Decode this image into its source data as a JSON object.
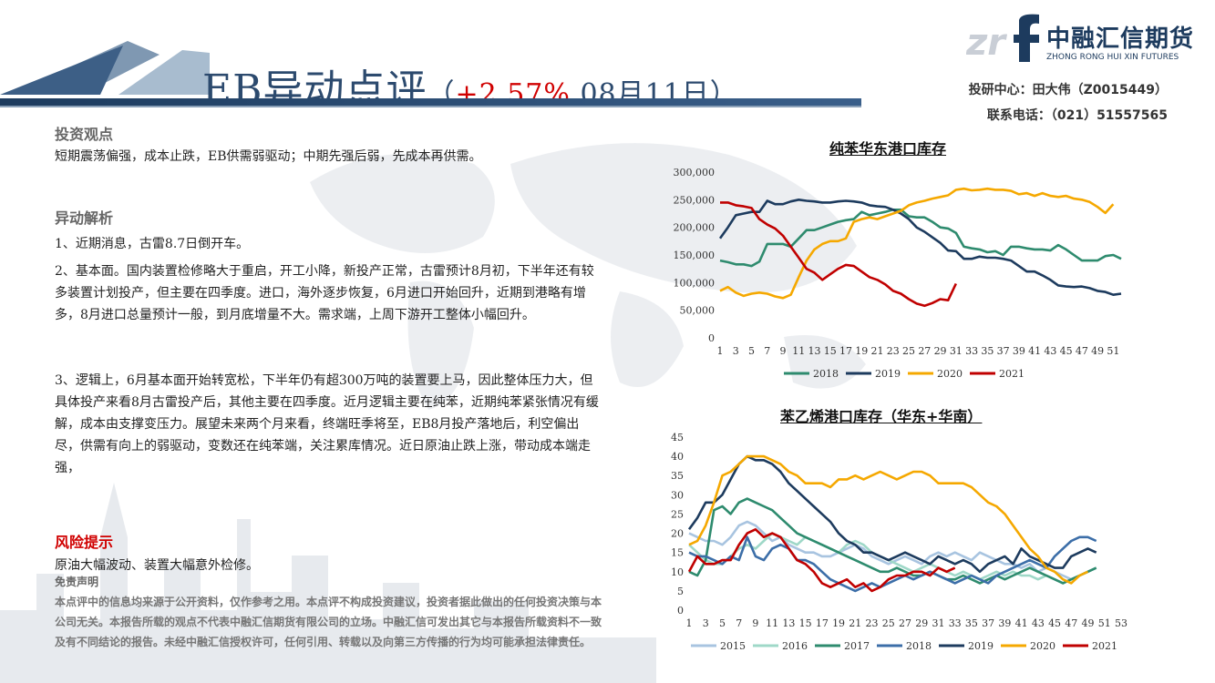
{
  "header": {
    "title_main": "EB异动点评",
    "title_paren_open": "（",
    "title_pct": "+2.57%",
    "title_date": " 08月11日",
    "title_paren_close": "）",
    "logo_cn": "中融汇信期货",
    "logo_en": "ZHONG RONG HUI XIN FUTURES",
    "contact_1": "投研中心：田大伟（Z0015449）",
    "contact_2": "联系电话：（021）51557565"
  },
  "view": {
    "title": "投资观点",
    "text": "短期震荡偏强，成本止跌，EB供需弱驱动；中期先强后弱，先成本再供需。"
  },
  "analysis": {
    "title": "异动解析",
    "p1": "1、近期消息，古雷8.7日倒开车。",
    "p2": "2、基本面。国内装置检修略大于重启，开工小降，新投产正常，古雷预计8月初，下半年还有较多装置计划投产，但主要在四季度。进口，海外逐步恢复，6月进口开始回升，近期到港略有增多，8月进口总量预计一般，到月底增量不大。需求端，上周下游开工整体小幅回升。",
    "p3": "3、逻辑上，6月基本面开始转宽松，下半年仍有超300万吨的装置要上马，因此整体压力大，但具体投产来看8月古雷投产后，其他主要在四季度。近月逻辑主要在纯苯，近期纯苯紧张情况有缓解，成本由支撑变压力。展望未来两个月来看，终端旺季将至，EB8月投产落地后，利空偏出尽，供需有向上的弱驱动，变数还在纯苯端，关注累库情况。近日原油止跌上涨，带动成本端走强，"
  },
  "risk": {
    "title": "风险提示",
    "text": "原油大幅波动、装置大幅意外检修。"
  },
  "disclaimer": {
    "title": "免责声明",
    "text": "本点评中的信息均来源于公开资料，仅作参考之用。本点评不构成投资建议，投资者据此做出的任何投资决策与本公司无关。本报告所载的观点不代表中融汇信期货有限公司的立场。中融汇信可发出其它与本报告所载资料不一致及有不同结论的报告。未经中融汇信授权许可，任何引用、转载以及向第三方传播的行为均可能承担法律责任。"
  },
  "chart_data": [
    {
      "type": "line",
      "title": "纯苯华东港口库存",
      "ylim": [
        0,
        300000
      ],
      "yticks": [
        "300,000",
        "250,000",
        "200,000",
        "150,000",
        "100,000",
        "50,000",
        "0"
      ],
      "x": [
        1,
        2,
        3,
        4,
        5,
        6,
        7,
        8,
        9,
        10,
        11,
        12,
        13,
        14,
        15,
        16,
        17,
        18,
        19,
        20,
        21,
        22,
        23,
        24,
        25,
        26,
        27,
        28,
        29,
        30,
        31,
        32,
        33,
        34,
        35,
        36,
        37,
        38,
        39,
        40,
        41,
        42,
        43,
        44,
        45,
        46,
        47,
        48,
        49,
        50,
        51,
        52
      ],
      "xticks": [
        "1",
        "3",
        "5",
        "7",
        "9",
        "11",
        "13",
        "15",
        "17",
        "19",
        "21",
        "23",
        "25",
        "27",
        "29",
        "31",
        "33",
        "35",
        "37",
        "39",
        "41",
        "43",
        "45",
        "47",
        "49",
        "51"
      ],
      "legend": "bottom",
      "series": [
        {
          "name": "2018",
          "color": "#2e8b6e",
          "values": [
            140000,
            137000,
            133000,
            133000,
            130000,
            138000,
            170000,
            170000,
            170000,
            165000,
            180000,
            195000,
            195000,
            200000,
            205000,
            210000,
            213000,
            215000,
            228000,
            222000,
            225000,
            228000,
            232000,
            232000,
            220000,
            218000,
            218000,
            210000,
            200000,
            198000,
            190000,
            165000,
            162000,
            160000,
            155000,
            157000,
            150000,
            165000,
            165000,
            162000,
            160000,
            160000,
            158000,
            168000,
            160000,
            150000,
            140000,
            140000,
            140000,
            148000,
            150000,
            143000
          ]
        },
        {
          "name": "2019",
          "color": "#1d3b5e",
          "values": [
            180000,
            200000,
            222000,
            225000,
            228000,
            228000,
            248000,
            242000,
            242000,
            247000,
            250000,
            248000,
            247000,
            245000,
            245000,
            247000,
            248000,
            247000,
            245000,
            240000,
            238000,
            237000,
            232000,
            225000,
            215000,
            200000,
            192000,
            182000,
            172000,
            158000,
            157000,
            143000,
            143000,
            147000,
            145000,
            145000,
            143000,
            140000,
            130000,
            120000,
            120000,
            113000,
            105000,
            95000,
            93000,
            92000,
            93000,
            90000,
            85000,
            83000,
            78000,
            80000
          ]
        },
        {
          "name": "2020",
          "color": "#f5a800",
          "values": [
            85000,
            92000,
            82000,
            76000,
            80000,
            82000,
            80000,
            75000,
            72000,
            78000,
            110000,
            140000,
            160000,
            170000,
            175000,
            175000,
            180000,
            210000,
            215000,
            218000,
            215000,
            220000,
            225000,
            230000,
            240000,
            245000,
            248000,
            252000,
            255000,
            258000,
            268000,
            270000,
            267000,
            268000,
            270000,
            268000,
            268000,
            266000,
            260000,
            262000,
            257000,
            262000,
            257000,
            255000,
            257000,
            252000,
            250000,
            246000,
            237000,
            226000,
            242000,
            null
          ]
        },
        {
          "name": "2021",
          "color": "#c00000",
          "values": [
            245000,
            245000,
            240000,
            238000,
            235000,
            215000,
            205000,
            198000,
            185000,
            165000,
            145000,
            125000,
            118000,
            105000,
            115000,
            125000,
            132000,
            130000,
            120000,
            110000,
            105000,
            97000,
            85000,
            80000,
            70000,
            62000,
            58000,
            63000,
            70000,
            68000,
            98000,
            null,
            null,
            null,
            null,
            null,
            null,
            null,
            null,
            null,
            null,
            null,
            null,
            null,
            null,
            null,
            null,
            null,
            null,
            null,
            null,
            null
          ]
        }
      ]
    },
    {
      "type": "line",
      "title": "苯乙烯港口库存（华东+华南）",
      "ylim": [
        0,
        45
      ],
      "yticks": [
        "45",
        "40",
        "35",
        "30",
        "25",
        "20",
        "15",
        "10",
        "5",
        "0"
      ],
      "x": [
        1,
        2,
        3,
        4,
        5,
        6,
        7,
        8,
        9,
        10,
        11,
        12,
        13,
        14,
        15,
        16,
        17,
        18,
        19,
        20,
        21,
        22,
        23,
        24,
        25,
        26,
        27,
        28,
        29,
        30,
        31,
        32,
        33,
        34,
        35,
        36,
        37,
        38,
        39,
        40,
        41,
        42,
        43,
        44,
        45,
        46,
        47,
        48,
        49,
        50,
        51,
        52,
        53
      ],
      "xticks": [
        "1",
        "3",
        "5",
        "7",
        "9",
        "11",
        "13",
        "15",
        "17",
        "19",
        "21",
        "23",
        "25",
        "27",
        "29",
        "31",
        "33",
        "35",
        "37",
        "39",
        "41",
        "43",
        "45",
        "47",
        "49",
        "51",
        "53"
      ],
      "legend": "bottom",
      "series": [
        {
          "name": "2015",
          "color": "#a8c4e0",
          "values": [
            20,
            19,
            18,
            18,
            17,
            19,
            22,
            23,
            22,
            20,
            18,
            19,
            17,
            16,
            15,
            15,
            14,
            14,
            15,
            16,
            17,
            16,
            14,
            13,
            12,
            13,
            14,
            13,
            12,
            14,
            15,
            14,
            15,
            14,
            13,
            15,
            14,
            13,
            12,
            12,
            11,
            12,
            10,
            11,
            10,
            9,
            8,
            9,
            10,
            11,
            null,
            null,
            null
          ]
        },
        {
          "name": "2016",
          "color": "#9fd8c8",
          "values": [
            17,
            15,
            13,
            12,
            12,
            14,
            16,
            17,
            16,
            18,
            20,
            19,
            18,
            17,
            19,
            18,
            17,
            16,
            15,
            17,
            18,
            17,
            15,
            14,
            13,
            12,
            11,
            10,
            11,
            12,
            11,
            10,
            9,
            10,
            9,
            8,
            9,
            10,
            9,
            10,
            9,
            9,
            8,
            9,
            8,
            7,
            8,
            9,
            10,
            11,
            null,
            null,
            null
          ]
        },
        {
          "name": "2017",
          "color": "#2e8b6e",
          "values": [
            10,
            9,
            13,
            26,
            27,
            25,
            28,
            29,
            28,
            27,
            26,
            24,
            22,
            20,
            19,
            18,
            17,
            16,
            15,
            14,
            13,
            12,
            11,
            10,
            10,
            11,
            10,
            9,
            9,
            10,
            9,
            8,
            8,
            9,
            8,
            7,
            8,
            9,
            8,
            9,
            10,
            11,
            10,
            9,
            8,
            7,
            8,
            9,
            10,
            11,
            null,
            null,
            null
          ]
        },
        {
          "name": "2018",
          "color": "#3c6ea8",
          "values": [
            15,
            14,
            14,
            13,
            12,
            14,
            13,
            19,
            14,
            13,
            16,
            17,
            16,
            13,
            13,
            12,
            10,
            8,
            7,
            6,
            5,
            6,
            7,
            6,
            7,
            8,
            9,
            8,
            9,
            10,
            9,
            8,
            7,
            8,
            9,
            8,
            7,
            9,
            10,
            11,
            12,
            13,
            12,
            11,
            14,
            16,
            18,
            19,
            19,
            18,
            null,
            null,
            null
          ]
        },
        {
          "name": "2019",
          "color": "#1d3b5e",
          "values": [
            21,
            24,
            28,
            28,
            30,
            34,
            38,
            40,
            39,
            39,
            38,
            36,
            33,
            31,
            29,
            27,
            25,
            23,
            20,
            18,
            17,
            15,
            15,
            14,
            13,
            14,
            15,
            14,
            13,
            12,
            14,
            13,
            12,
            13,
            12,
            10,
            12,
            13,
            14,
            12,
            16,
            14,
            13,
            12,
            11,
            11,
            14,
            15,
            16,
            15,
            null,
            null,
            null
          ]
        },
        {
          "name": "2020",
          "color": "#f5a800",
          "values": [
            17,
            18,
            22,
            28,
            35,
            36,
            38,
            40,
            40,
            40,
            39,
            38,
            36,
            35,
            33,
            33,
            33,
            32,
            34,
            34,
            35,
            34,
            35,
            36,
            35,
            34,
            35,
            36,
            36,
            35,
            33,
            33,
            33,
            33,
            32,
            30,
            28,
            27,
            25,
            22,
            19,
            16,
            14,
            11,
            10,
            8,
            7,
            9,
            10,
            null,
            null,
            null,
            null
          ]
        },
        {
          "name": "2021",
          "color": "#c00000",
          "values": [
            10,
            14,
            12,
            12,
            13,
            13,
            17,
            20,
            21,
            19,
            20,
            19,
            16,
            13,
            12,
            10,
            7,
            6,
            7,
            8,
            6,
            7,
            5,
            6,
            8,
            9,
            9,
            10,
            10,
            9,
            11,
            10,
            11,
            null,
            null,
            null,
            null,
            null,
            null,
            null,
            null,
            null,
            null,
            null,
            null,
            null,
            null,
            null,
            null,
            null,
            null,
            null,
            null
          ]
        }
      ]
    }
  ]
}
